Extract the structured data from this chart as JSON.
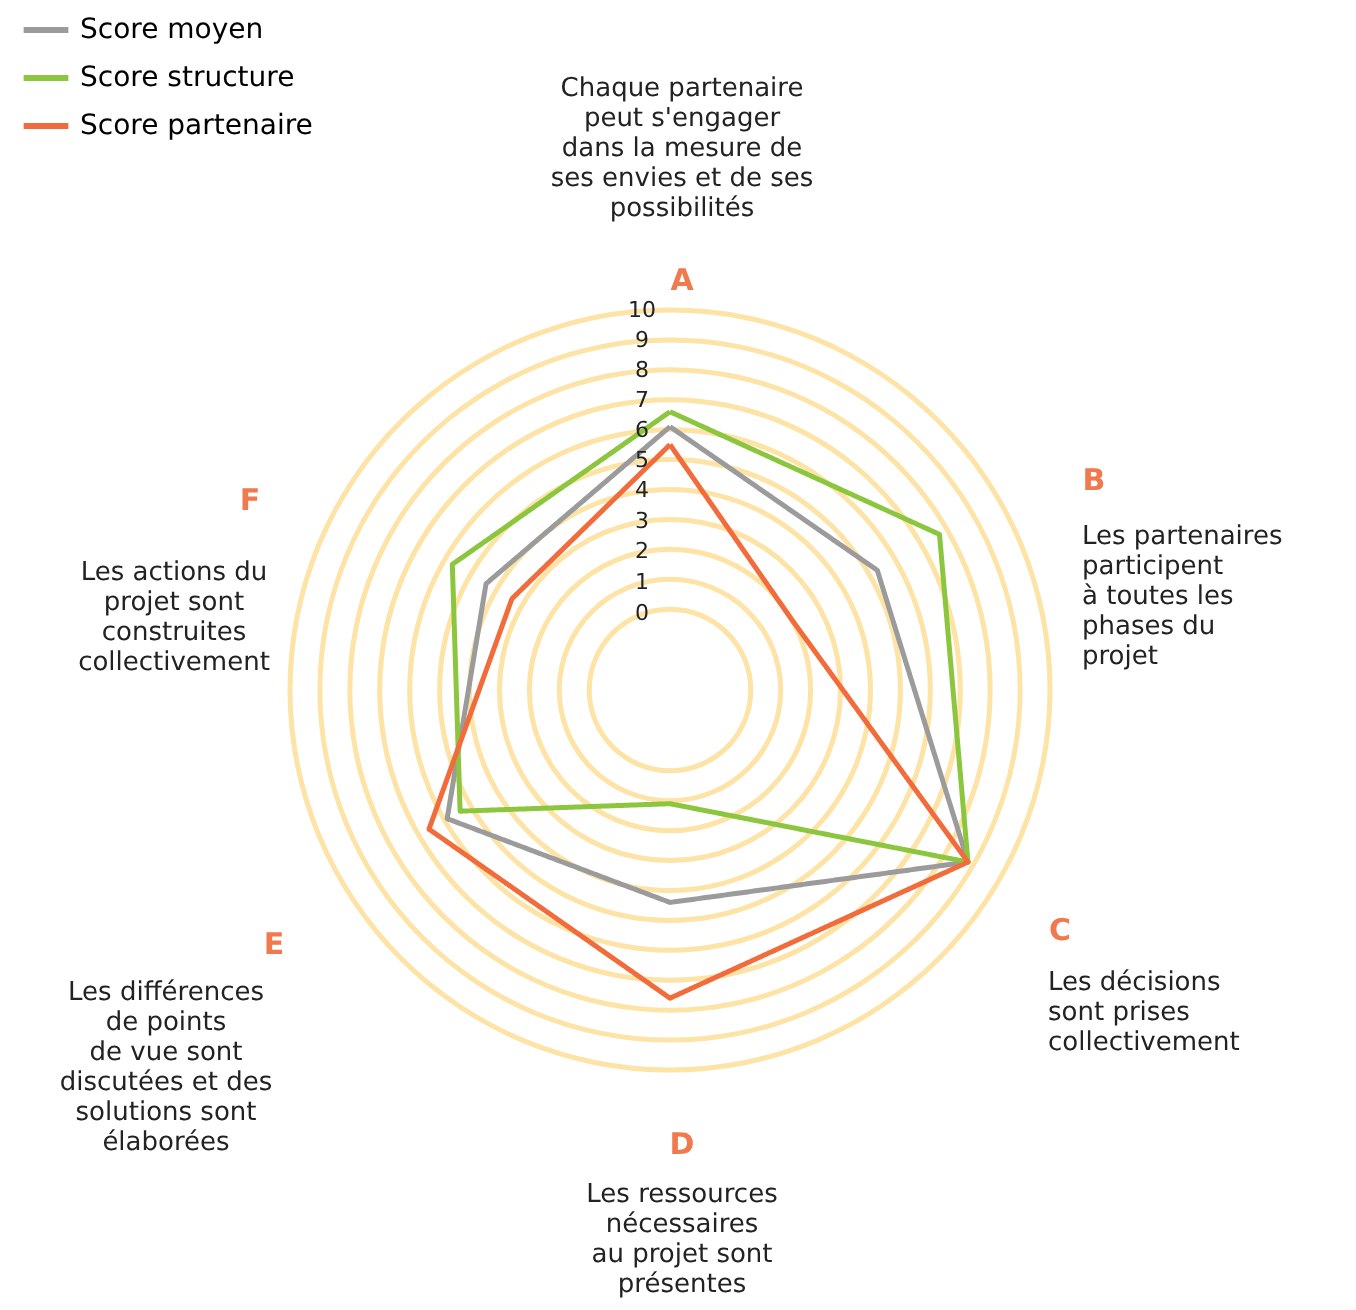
{
  "chart_data": {
    "type": "radar",
    "categories": [
      "A",
      "B",
      "C",
      "D",
      "E",
      "F"
    ],
    "annotations": [
      "Chaque partenaire\npeut s'engager\ndans la mesure de\nses envies et de ses\npossibilités",
      "Les partenaires\nparticipent\nà toutes les\nphases du\nprojet",
      "Les décisions\nsont prises\ncollectivement",
      "Les ressources\nnécessaires\nau projet sont\nprésentes",
      "Les différences\nde points\nde vue sont\ndiscutées et des\nsolutions sont\nélaborées",
      "Les actions du\nprojet sont\nconstruites\ncollectivement"
    ],
    "series": [
      {
        "name": "Score moyen",
        "color": "#9b9b9b",
        "values": [
          6.1,
          5.3,
          8.8,
          4.4,
          5.9,
          4.4
        ]
      },
      {
        "name": "Score structure",
        "color": "#8cc63f",
        "values": [
          6.6,
          7.7,
          8.8,
          1.1,
          5.4,
          5.7
        ]
      },
      {
        "name": "Score partenaire",
        "color": "#f26b3a",
        "values": [
          5.5,
          2.0,
          8.8,
          7.6,
          6.6,
          3.4
        ]
      }
    ],
    "ylim": [
      -2.7,
      10
    ],
    "yticks": [
      0,
      1,
      2,
      3,
      4,
      5,
      6,
      7,
      8,
      9,
      10
    ],
    "grid": true,
    "legend": "top left",
    "line_style": "solid",
    "marker": "none"
  }
}
